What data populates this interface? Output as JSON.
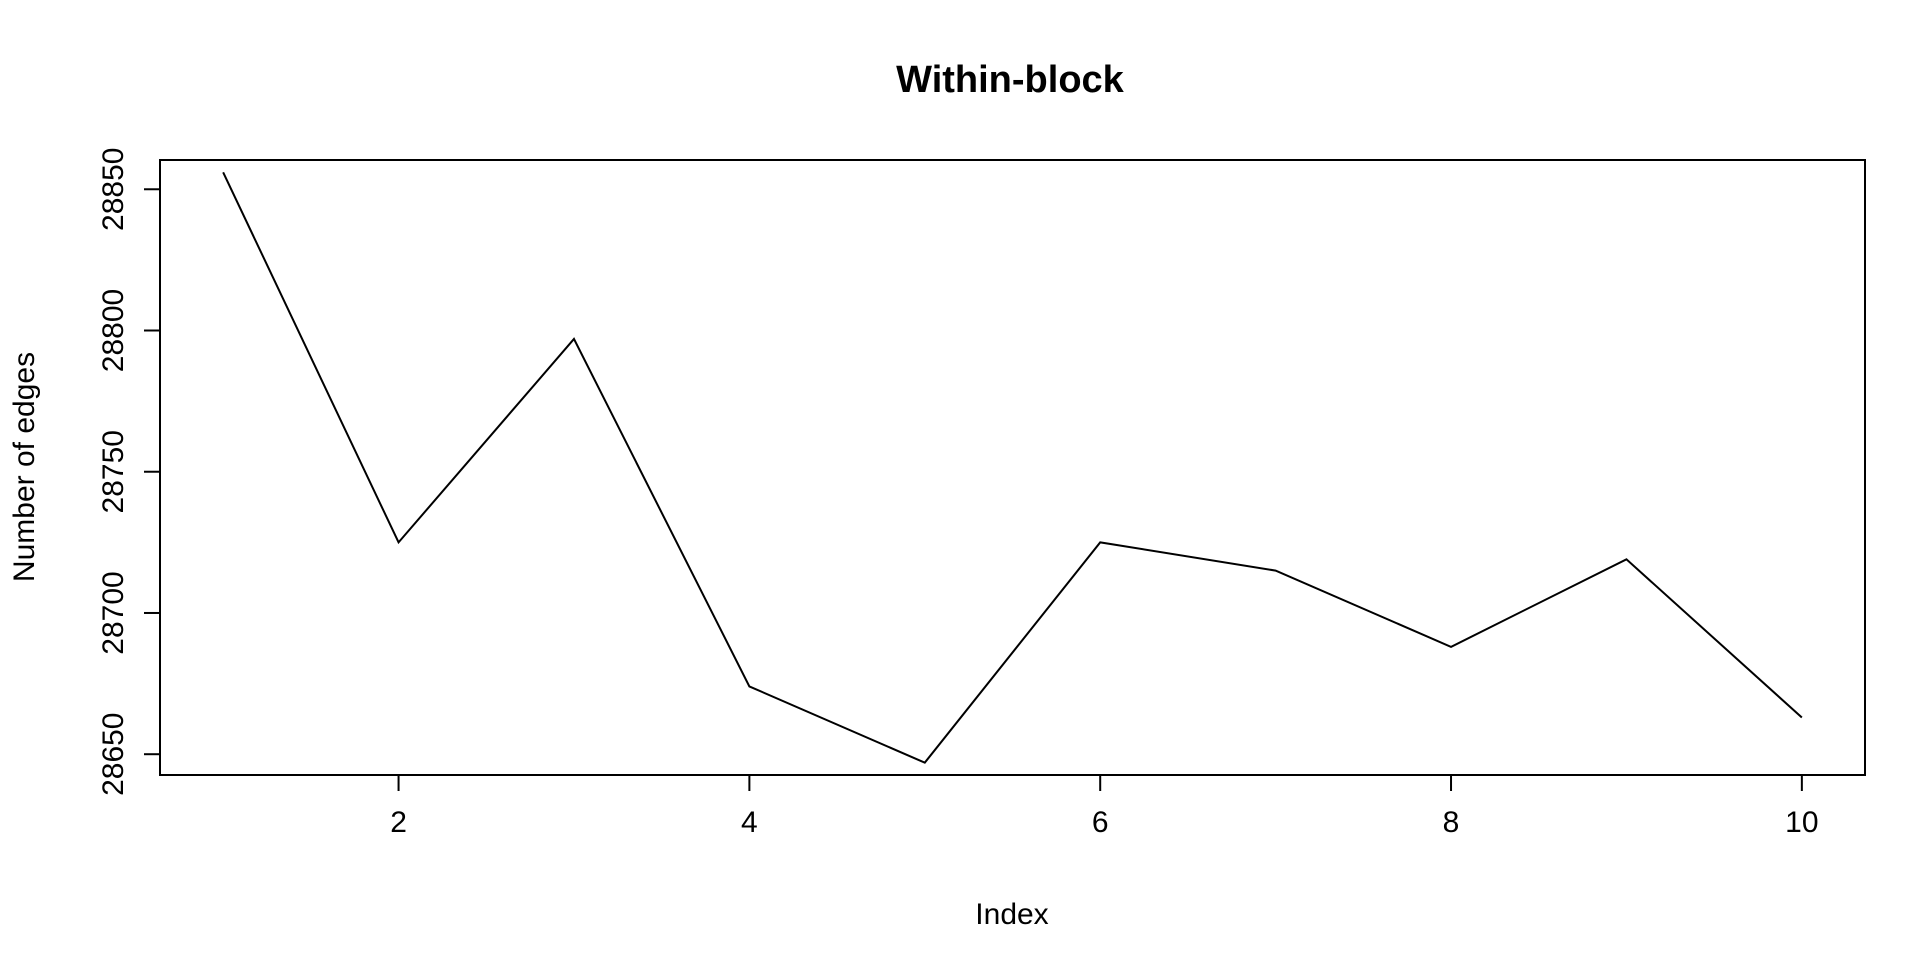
{
  "chart_data": {
    "type": "line",
    "title": "Within-block",
    "xlabel": "Index",
    "ylabel": "Number of edges",
    "x": [
      1,
      2,
      3,
      4,
      5,
      6,
      7,
      8,
      9,
      10
    ],
    "series": [
      {
        "values": [
          28856,
          28725,
          28797,
          28674,
          28647,
          28725,
          28715,
          28688,
          28719,
          28663
        ],
        "color": "#000000"
      }
    ],
    "xticks": [
      2,
      4,
      6,
      8,
      10
    ],
    "xtick_labels": [
      "2",
      "4",
      "6",
      "8",
      "10"
    ],
    "yticks": [
      28650,
      28700,
      28750,
      28800,
      28850
    ],
    "ytick_labels": [
      "28650",
      "28700",
      "28750",
      "28800",
      "28850"
    ],
    "xlim": [
      0.64,
      10.36
    ],
    "ylim": [
      28642.64,
      28860.36
    ],
    "grid": false,
    "legend": "none"
  }
}
